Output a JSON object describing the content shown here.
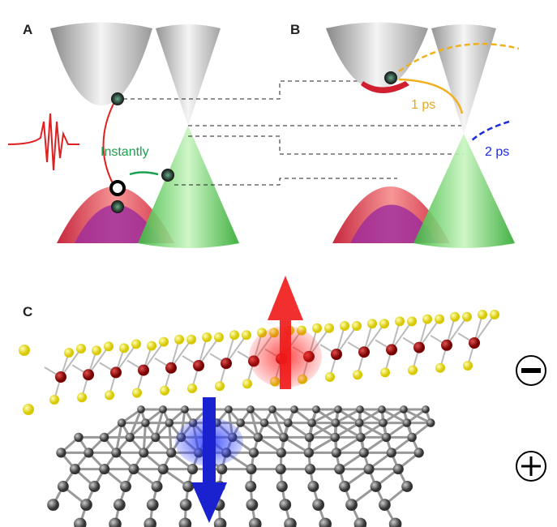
{
  "panels": {
    "a": {
      "label": "A",
      "arrow_label": "Instantly"
    },
    "b": {
      "label": "B",
      "arrow_labels": [
        "1 ps",
        "2 ps"
      ]
    },
    "c": {
      "label": "C"
    }
  }
}
